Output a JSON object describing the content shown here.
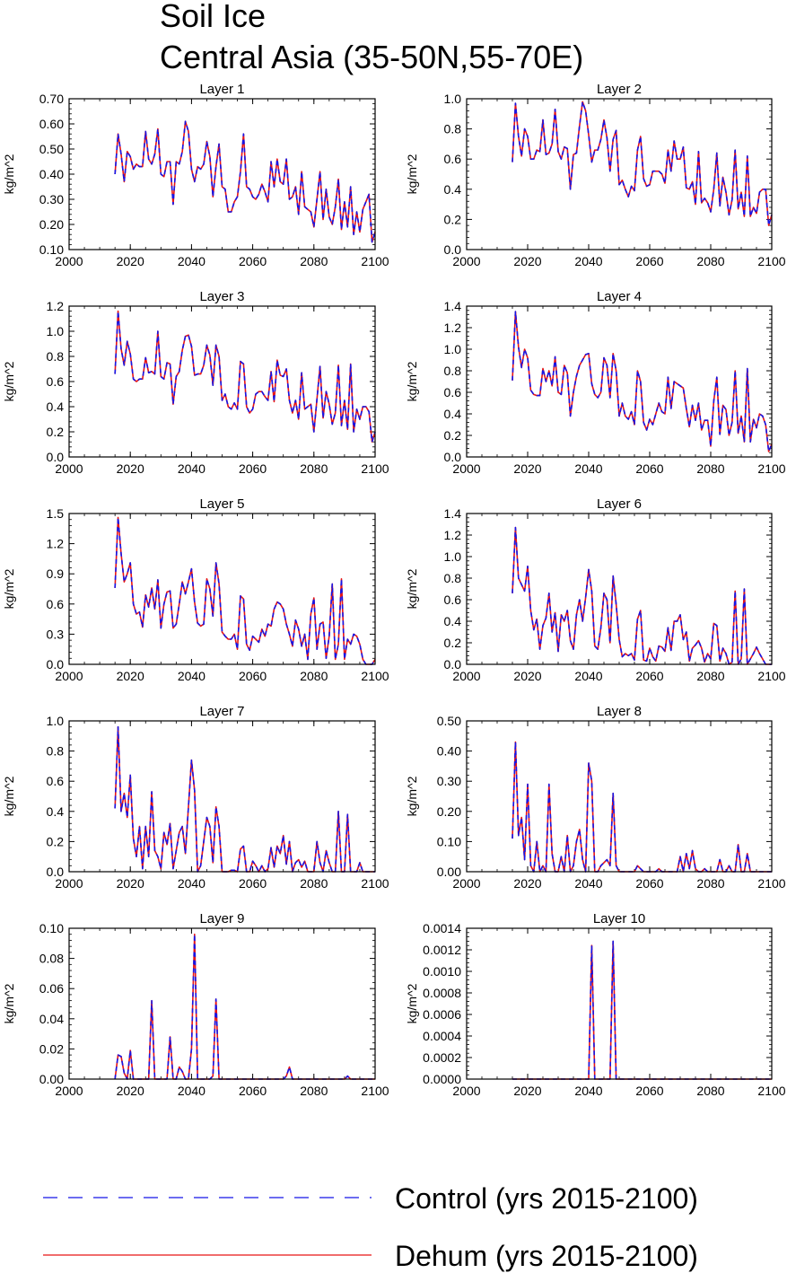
{
  "figure": {
    "title_line1": "Soil Ice",
    "title_line2": "Central Asia (35-50N,55-70E)"
  },
  "legend": {
    "items": [
      {
        "label": "Control (yrs 2015-2100)",
        "color": "#1515e6",
        "style": "dashed"
      },
      {
        "label": "Dehum (yrs 2015-2100)",
        "color": "#e61515",
        "style": "solid"
      }
    ]
  },
  "chart_data": [
    {
      "type": "line",
      "title": "Layer 1",
      "xlabel": "",
      "ylabel": "kg/m^2",
      "xlim": [
        2000,
        2100
      ],
      "ylim": [
        0.1,
        0.7
      ],
      "xticks": [
        "2000",
        "2020",
        "2040",
        "2060",
        "2080",
        "2100"
      ],
      "yticks": [
        "0.10",
        "0.20",
        "0.30",
        "0.40",
        "0.50",
        "0.60",
        "0.70"
      ],
      "x_start": 2015,
      "values": [
        0.4,
        0.56,
        0.48,
        0.37,
        0.49,
        0.47,
        0.42,
        0.44,
        0.43,
        0.43,
        0.57,
        0.46,
        0.44,
        0.48,
        0.58,
        0.4,
        0.39,
        0.45,
        0.45,
        0.28,
        0.45,
        0.44,
        0.49,
        0.61,
        0.57,
        0.42,
        0.37,
        0.43,
        0.42,
        0.44,
        0.53,
        0.47,
        0.31,
        0.43,
        0.52,
        0.35,
        0.34,
        0.25,
        0.25,
        0.29,
        0.31,
        0.41,
        0.56,
        0.35,
        0.34,
        0.31,
        0.3,
        0.32,
        0.36,
        0.33,
        0.29,
        0.45,
        0.35,
        0.46,
        0.37,
        0.36,
        0.46,
        0.3,
        0.31,
        0.35,
        0.24,
        0.41,
        0.27,
        0.26,
        0.25,
        0.19,
        0.3,
        0.41,
        0.22,
        0.34,
        0.23,
        0.2,
        0.27,
        0.38,
        0.18,
        0.29,
        0.19,
        0.35,
        0.16,
        0.25,
        0.17,
        0.26,
        0.29,
        0.32,
        0.13,
        0.17
      ]
    },
    {
      "type": "line",
      "title": "Layer 2",
      "xlabel": "",
      "ylabel": "kg/m^2",
      "xlim": [
        2000,
        2100
      ],
      "ylim": [
        0.0,
        1.0
      ],
      "xticks": [
        "2000",
        "2020",
        "2040",
        "2060",
        "2080",
        "2100"
      ],
      "yticks": [
        "0.0",
        "0.2",
        "0.4",
        "0.6",
        "0.8",
        "1.0"
      ],
      "x_start": 2015,
      "values": [
        0.58,
        0.97,
        0.75,
        0.62,
        0.8,
        0.75,
        0.6,
        0.6,
        0.66,
        0.65,
        0.86,
        0.63,
        0.64,
        0.7,
        0.93,
        0.65,
        0.6,
        0.68,
        0.67,
        0.4,
        0.63,
        0.64,
        0.82,
        0.98,
        0.92,
        0.76,
        0.58,
        0.66,
        0.66,
        0.73,
        0.86,
        0.74,
        0.52,
        0.73,
        0.79,
        0.43,
        0.46,
        0.4,
        0.35,
        0.42,
        0.39,
        0.66,
        0.75,
        0.47,
        0.42,
        0.43,
        0.52,
        0.52,
        0.52,
        0.5,
        0.44,
        0.66,
        0.52,
        0.72,
        0.6,
        0.6,
        0.68,
        0.41,
        0.4,
        0.45,
        0.3,
        0.65,
        0.31,
        0.34,
        0.31,
        0.25,
        0.4,
        0.64,
        0.29,
        0.48,
        0.38,
        0.23,
        0.33,
        0.66,
        0.27,
        0.38,
        0.22,
        0.62,
        0.22,
        0.28,
        0.24,
        0.38,
        0.4,
        0.4,
        0.16,
        0.23
      ]
    },
    {
      "type": "line",
      "title": "Layer 3",
      "xlabel": "",
      "ylabel": "kg/m^2",
      "xlim": [
        2000,
        2100
      ],
      "ylim": [
        0.0,
        1.2
      ],
      "xticks": [
        "2000",
        "2020",
        "2040",
        "2060",
        "2080",
        "2100"
      ],
      "yticks": [
        "0.0",
        "0.2",
        "0.4",
        "0.6",
        "0.8",
        "1.0",
        "1.2"
      ],
      "x_start": 2015,
      "values": [
        0.66,
        1.16,
        0.86,
        0.73,
        0.92,
        0.82,
        0.62,
        0.6,
        0.62,
        0.62,
        0.79,
        0.67,
        0.68,
        0.66,
        1.0,
        0.64,
        0.62,
        0.75,
        0.74,
        0.42,
        0.64,
        0.68,
        0.85,
        0.96,
        0.97,
        0.88,
        0.65,
        0.66,
        0.66,
        0.73,
        0.89,
        0.81,
        0.57,
        0.89,
        0.8,
        0.45,
        0.5,
        0.4,
        0.38,
        0.43,
        0.38,
        0.76,
        0.74,
        0.4,
        0.35,
        0.38,
        0.5,
        0.52,
        0.52,
        0.48,
        0.45,
        0.68,
        0.44,
        0.77,
        0.65,
        0.64,
        0.7,
        0.45,
        0.35,
        0.45,
        0.3,
        0.67,
        0.38,
        0.4,
        0.42,
        0.2,
        0.46,
        0.72,
        0.31,
        0.52,
        0.42,
        0.26,
        0.35,
        0.73,
        0.25,
        0.45,
        0.22,
        0.74,
        0.2,
        0.38,
        0.3,
        0.4,
        0.4,
        0.36,
        0.12,
        0.2
      ]
    },
    {
      "type": "line",
      "title": "Layer 4",
      "xlabel": "",
      "ylabel": "kg/m^2",
      "xlim": [
        2000,
        2100
      ],
      "ylim": [
        0.0,
        1.4
      ],
      "xticks": [
        "2000",
        "2020",
        "2040",
        "2060",
        "2080",
        "2100"
      ],
      "yticks": [
        "0.0",
        "0.2",
        "0.4",
        "0.6",
        "0.8",
        "1.0",
        "1.2",
        "1.4"
      ],
      "x_start": 2015,
      "values": [
        0.71,
        1.35,
        1.02,
        0.83,
        1.0,
        0.92,
        0.62,
        0.58,
        0.57,
        0.57,
        0.82,
        0.7,
        0.8,
        0.66,
        0.93,
        0.6,
        0.58,
        0.85,
        0.78,
        0.38,
        0.6,
        0.75,
        0.85,
        0.9,
        0.95,
        0.96,
        0.68,
        0.58,
        0.55,
        0.6,
        0.92,
        0.85,
        0.55,
        0.96,
        0.8,
        0.38,
        0.5,
        0.38,
        0.35,
        0.42,
        0.3,
        0.8,
        0.7,
        0.32,
        0.25,
        0.35,
        0.3,
        0.4,
        0.5,
        0.42,
        0.4,
        0.74,
        0.45,
        0.7,
        0.68,
        0.66,
        0.64,
        0.45,
        0.28,
        0.48,
        0.34,
        0.5,
        0.25,
        0.34,
        0.34,
        0.1,
        0.52,
        0.74,
        0.21,
        0.48,
        0.44,
        0.2,
        0.32,
        0.8,
        0.22,
        0.38,
        0.14,
        0.82,
        0.14,
        0.35,
        0.27,
        0.4,
        0.38,
        0.3,
        0.05,
        0.12
      ]
    },
    {
      "type": "line",
      "title": "Layer 5",
      "xlabel": "",
      "ylabel": "kg/m^2",
      "xlim": [
        2000,
        2100
      ],
      "ylim": [
        0.0,
        1.5
      ],
      "xticks": [
        "2000",
        "2020",
        "2040",
        "2060",
        "2080",
        "2100"
      ],
      "yticks": [
        "0.0",
        "0.3",
        "0.6",
        "0.9",
        "1.2",
        "1.5"
      ],
      "x_start": 2015,
      "values": [
        0.76,
        1.46,
        1.1,
        0.82,
        0.9,
        1.01,
        0.6,
        0.5,
        0.52,
        0.37,
        0.69,
        0.57,
        0.76,
        0.55,
        0.84,
        0.36,
        0.6,
        0.72,
        0.73,
        0.36,
        0.4,
        0.6,
        0.82,
        0.7,
        0.82,
        0.95,
        0.62,
        0.41,
        0.38,
        0.4,
        0.85,
        0.75,
        0.48,
        1.01,
        0.8,
        0.32,
        0.28,
        0.25,
        0.25,
        0.3,
        0.15,
        0.68,
        0.65,
        0.2,
        0.14,
        0.28,
        0.25,
        0.22,
        0.35,
        0.28,
        0.4,
        0.38,
        0.55,
        0.62,
        0.6,
        0.55,
        0.4,
        0.3,
        0.18,
        0.44,
        0.35,
        0.18,
        0.3,
        0.05,
        0.5,
        0.66,
        0.15,
        0.4,
        0.42,
        0.06,
        0.28,
        0.8,
        0.05,
        0.2,
        0.85,
        0.05,
        0.25,
        0.2,
        0.3,
        0.28,
        0.2,
        0.05,
        0.0,
        0.0,
        0.0,
        0.05
      ]
    },
    {
      "type": "line",
      "title": "Layer 6",
      "xlabel": "",
      "ylabel": "kg/m^2",
      "xlim": [
        2000,
        2100
      ],
      "ylim": [
        0.0,
        1.4
      ],
      "xticks": [
        "2000",
        "2020",
        "2040",
        "2060",
        "2080",
        "2100"
      ],
      "yticks": [
        "0.0",
        "0.2",
        "0.4",
        "0.6",
        "0.8",
        "1.0",
        "1.2",
        "1.4"
      ],
      "x_start": 2015,
      "values": [
        0.66,
        1.27,
        0.8,
        0.74,
        0.68,
        0.91,
        0.5,
        0.32,
        0.42,
        0.14,
        0.36,
        0.43,
        0.66,
        0.3,
        0.48,
        0.12,
        0.46,
        0.4,
        0.5,
        0.22,
        0.14,
        0.46,
        0.6,
        0.4,
        0.62,
        0.88,
        0.68,
        0.17,
        0.14,
        0.34,
        0.66,
        0.6,
        0.2,
        0.82,
        0.56,
        0.23,
        0.07,
        0.1,
        0.08,
        0.1,
        0.04,
        0.42,
        0.5,
        0.04,
        0.03,
        0.15,
        0.07,
        0.03,
        0.17,
        0.16,
        0.12,
        0.34,
        0.13,
        0.4,
        0.4,
        0.46,
        0.23,
        0.3,
        0.03,
        0.15,
        0.18,
        0.22,
        0.15,
        0.02,
        0.1,
        0.05,
        0.38,
        0.36,
        0.03,
        0.15,
        0.1,
        0.0,
        0.02,
        0.68,
        0.0,
        0.05,
        0.7,
        0.0,
        0.05,
        0.1,
        0.16,
        0.1,
        0.05,
        0.0,
        0.0,
        0.0
      ]
    },
    {
      "type": "line",
      "title": "Layer 7",
      "xlabel": "",
      "ylabel": "kg/m^2",
      "xlim": [
        2000,
        2100
      ],
      "ylim": [
        0.0,
        1.0
      ],
      "xticks": [
        "2000",
        "2020",
        "2040",
        "2060",
        "2080",
        "2100"
      ],
      "yticks": [
        "0.0",
        "0.2",
        "0.4",
        "0.6",
        "0.8",
        "1.0"
      ],
      "x_start": 2015,
      "values": [
        0.42,
        0.96,
        0.4,
        0.52,
        0.36,
        0.64,
        0.22,
        0.1,
        0.3,
        0.02,
        0.3,
        0.1,
        0.53,
        0.14,
        0.1,
        0.02,
        0.26,
        0.18,
        0.32,
        0.02,
        0.14,
        0.26,
        0.3,
        0.12,
        0.43,
        0.74,
        0.54,
        0.0,
        0.04,
        0.2,
        0.36,
        0.3,
        0.06,
        0.43,
        0.3,
        0.0,
        0.0,
        0.0,
        0.01,
        0.01,
        0.0,
        0.15,
        0.17,
        0.0,
        0.0,
        0.07,
        0.04,
        0.0,
        0.04,
        0.0,
        0.02,
        0.16,
        0.03,
        0.17,
        0.12,
        0.24,
        0.05,
        0.2,
        0.0,
        0.06,
        0.08,
        0.03,
        0.07,
        0.0,
        0.0,
        0.0,
        0.2,
        0.06,
        0.0,
        0.14,
        0.06,
        0.0,
        0.0,
        0.4,
        0.0,
        0.0,
        0.38,
        0.0,
        0.0,
        0.0,
        0.06,
        0.0,
        0.0,
        0.0,
        0.0,
        0.0
      ]
    },
    {
      "type": "line",
      "title": "Layer 8",
      "xlabel": "",
      "ylabel": "kg/m^2",
      "xlim": [
        2000,
        2100
      ],
      "ylim": [
        0.0,
        0.5
      ],
      "xticks": [
        "2000",
        "2020",
        "2040",
        "2060",
        "2080",
        "2100"
      ],
      "yticks": [
        "0.00",
        "0.10",
        "0.20",
        "0.30",
        "0.40",
        "0.50"
      ],
      "x_start": 2015,
      "values": [
        0.11,
        0.43,
        0.12,
        0.18,
        0.04,
        0.29,
        0.02,
        0.0,
        0.1,
        0.0,
        0.02,
        0.0,
        0.29,
        0.06,
        0.0,
        0.0,
        0.05,
        0.0,
        0.12,
        0.0,
        0.02,
        0.1,
        0.14,
        0.04,
        0.0,
        0.36,
        0.3,
        0.0,
        0.0,
        0.02,
        0.03,
        0.04,
        0.02,
        0.26,
        0.02,
        0.0,
        0.0,
        0.0,
        0.0,
        0.0,
        0.0,
        0.02,
        0.01,
        0.0,
        0.0,
        0.0,
        0.0,
        0.0,
        0.01,
        0.0,
        0.0,
        0.0,
        0.0,
        0.0,
        0.0,
        0.05,
        0.0,
        0.06,
        0.01,
        0.07,
        0.01,
        0.0,
        0.0,
        0.01,
        0.0,
        0.0,
        0.0,
        0.0,
        0.04,
        0.0,
        0.0,
        0.02,
        0.0,
        0.0,
        0.09,
        0.0,
        0.0,
        0.06,
        0.0,
        0.0,
        0.0,
        0.0,
        0.0,
        0.0,
        0.0,
        0.0
      ]
    },
    {
      "type": "line",
      "title": "Layer 9",
      "xlabel": "",
      "ylabel": "kg/m^2",
      "xlim": [
        2000,
        2100
      ],
      "ylim": [
        0.0,
        0.1
      ],
      "xticks": [
        "2000",
        "2020",
        "2040",
        "2060",
        "2080",
        "2100"
      ],
      "yticks": [
        "0.00",
        "0.02",
        "0.04",
        "0.06",
        "0.08",
        "0.10"
      ],
      "x_start": 2015,
      "values": [
        0.0,
        0.016,
        0.015,
        0.004,
        0.0,
        0.019,
        0.0,
        0.0,
        0.0,
        0.0,
        0.0,
        0.0,
        0.052,
        0.0,
        0.0,
        0.0,
        0.0,
        0.0,
        0.028,
        0.0,
        0.0,
        0.008,
        0.005,
        0.0,
        0.0,
        0.02,
        0.096,
        0.0,
        0.0,
        0.0,
        0.0,
        0.0,
        0.002,
        0.053,
        0.0,
        0.0,
        0.0,
        0.0,
        0.0,
        0.0,
        0.0,
        0.0,
        0.0,
        0.0,
        0.0,
        0.0,
        0.0,
        0.0,
        0.0,
        0.0,
        0.0,
        0.0,
        0.0,
        0.0,
        0.0,
        0.0,
        0.002,
        0.008,
        0.0,
        0.0,
        0.0,
        0.0,
        0.0,
        0.0,
        0.0,
        0.0,
        0.0,
        0.0,
        0.0,
        0.0,
        0.0,
        0.0,
        0.0,
        0.0,
        0.0,
        0.0,
        0.002,
        0.0,
        0.0,
        0.0,
        0.0,
        0.0,
        0.0,
        0.0,
        0.0,
        0.0
      ]
    },
    {
      "type": "line",
      "title": "Layer 10",
      "xlabel": "",
      "ylabel": "kg/m^2",
      "xlim": [
        2000,
        2100
      ],
      "ylim": [
        0.0,
        0.0014
      ],
      "xticks": [
        "2000",
        "2020",
        "2040",
        "2060",
        "2080",
        "2100"
      ],
      "yticks": [
        "0.0000",
        "0.0002",
        "0.0004",
        "0.0006",
        "0.0008",
        "0.0010",
        "0.0012",
        "0.0014"
      ],
      "x_start": 2015,
      "values": [
        0,
        0,
        0,
        0,
        0,
        0,
        0,
        0,
        0,
        0,
        0,
        0,
        0,
        0,
        0,
        0,
        0,
        0,
        0,
        0,
        0,
        0,
        0,
        0,
        0,
        0,
        0.00124,
        0,
        0,
        0,
        0,
        0,
        0,
        0.00128,
        0,
        0,
        0,
        0,
        0,
        0,
        0,
        0,
        0,
        0,
        0,
        0,
        0,
        0,
        0,
        0,
        0,
        0,
        0,
        0,
        0,
        0,
        0,
        0,
        0,
        0,
        0,
        0,
        0,
        0,
        0,
        0,
        0,
        0,
        0,
        0,
        0,
        0,
        0,
        0,
        0,
        0,
        0,
        0,
        0,
        0,
        0,
        0,
        0,
        0,
        0,
        0
      ]
    }
  ]
}
